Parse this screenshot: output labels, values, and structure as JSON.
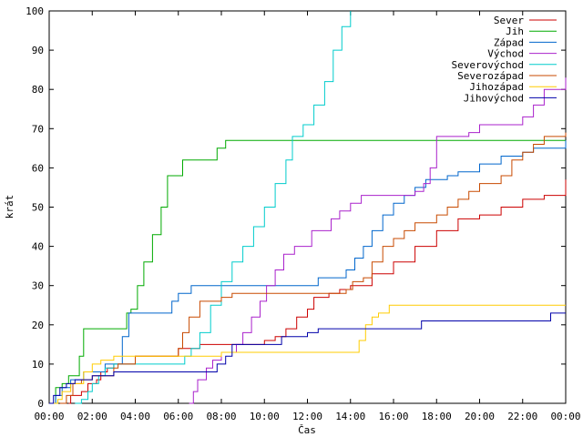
{
  "chart_data": {
    "type": "line",
    "title": "",
    "xlabel": "Čas",
    "ylabel": "krát",
    "xlim": [
      0,
      24
    ],
    "ylim": [
      0,
      100
    ],
    "x_ticks": [
      "00:00",
      "02:00",
      "04:00",
      "06:00",
      "08:00",
      "10:00",
      "12:00",
      "14:00",
      "16:00",
      "18:00",
      "20:00",
      "22:00",
      "00:00"
    ],
    "y_ticks": [
      0,
      10,
      20,
      30,
      40,
      50,
      60,
      70,
      80,
      90,
      100
    ],
    "legend_position": "top-right",
    "grid": false,
    "series": [
      {
        "name": "Sever",
        "color": "#cc0000",
        "points": [
          [
            0.9,
            0
          ],
          [
            1.0,
            2
          ],
          [
            1.5,
            3
          ],
          [
            1.8,
            5
          ],
          [
            2.2,
            6
          ],
          [
            2.4,
            8
          ],
          [
            2.7,
            9
          ],
          [
            3.0,
            10
          ],
          [
            4.0,
            12
          ],
          [
            6.0,
            14
          ],
          [
            7.0,
            15
          ],
          [
            10.0,
            16
          ],
          [
            10.5,
            17
          ],
          [
            11.0,
            19
          ],
          [
            11.5,
            22
          ],
          [
            12.0,
            24
          ],
          [
            12.3,
            27
          ],
          [
            13.0,
            28
          ],
          [
            13.5,
            29
          ],
          [
            14.0,
            30
          ],
          [
            15.0,
            33
          ],
          [
            16.0,
            36
          ],
          [
            17.0,
            40
          ],
          [
            18.0,
            44
          ],
          [
            19.0,
            47
          ],
          [
            20.0,
            48
          ],
          [
            21.0,
            50
          ],
          [
            22.0,
            52
          ],
          [
            23.0,
            53
          ],
          [
            24.0,
            57
          ]
        ]
      },
      {
        "name": "Jih",
        "color": "#00aa00",
        "points": [
          [
            0,
            0
          ],
          [
            0.3,
            4
          ],
          [
            0.6,
            5
          ],
          [
            0.9,
            7
          ],
          [
            1.4,
            12
          ],
          [
            1.6,
            19
          ],
          [
            3.5,
            19
          ],
          [
            3.6,
            23
          ],
          [
            3.8,
            24
          ],
          [
            4.1,
            30
          ],
          [
            4.4,
            36
          ],
          [
            4.8,
            43
          ],
          [
            5.2,
            50
          ],
          [
            5.5,
            58
          ],
          [
            6.2,
            62
          ],
          [
            7.6,
            62
          ],
          [
            7.8,
            65
          ],
          [
            8.2,
            67
          ],
          [
            24.0,
            67
          ]
        ]
      },
      {
        "name": "Západ",
        "color": "#0066cc",
        "points": [
          [
            0,
            0
          ],
          [
            0.3,
            2
          ],
          [
            0.6,
            4
          ],
          [
            1.0,
            6
          ],
          [
            1.6,
            8
          ],
          [
            2.6,
            10
          ],
          [
            3.4,
            17
          ],
          [
            3.7,
            23
          ],
          [
            5.7,
            26
          ],
          [
            6.0,
            28
          ],
          [
            6.6,
            30
          ],
          [
            11.5,
            30
          ],
          [
            12.5,
            32
          ],
          [
            13.8,
            34
          ],
          [
            14.2,
            37
          ],
          [
            14.6,
            40
          ],
          [
            15.0,
            44
          ],
          [
            15.5,
            48
          ],
          [
            16.0,
            51
          ],
          [
            16.5,
            53
          ],
          [
            17.0,
            55
          ],
          [
            17.5,
            57
          ],
          [
            18.5,
            58
          ],
          [
            19.0,
            59
          ],
          [
            20.0,
            61
          ],
          [
            21.0,
            63
          ],
          [
            22.0,
            64
          ],
          [
            22.5,
            65
          ],
          [
            24.0,
            67
          ]
        ]
      },
      {
        "name": "Východ",
        "color": "#aa22cc",
        "points": [
          [
            6.5,
            0
          ],
          [
            6.7,
            3
          ],
          [
            6.9,
            6
          ],
          [
            7.3,
            9
          ],
          [
            7.6,
            11
          ],
          [
            8.0,
            13
          ],
          [
            8.7,
            15
          ],
          [
            9.0,
            18
          ],
          [
            9.4,
            22
          ],
          [
            9.8,
            26
          ],
          [
            10.1,
            30
          ],
          [
            10.5,
            34
          ],
          [
            10.9,
            38
          ],
          [
            11.4,
            40
          ],
          [
            12.2,
            44
          ],
          [
            13.1,
            47
          ],
          [
            13.5,
            49
          ],
          [
            14.0,
            51
          ],
          [
            14.5,
            53
          ],
          [
            16.5,
            53
          ],
          [
            17.0,
            54
          ],
          [
            17.4,
            56
          ],
          [
            17.7,
            60
          ],
          [
            18.0,
            68
          ],
          [
            19.5,
            69
          ],
          [
            20.0,
            71
          ],
          [
            22.0,
            73
          ],
          [
            22.5,
            76
          ],
          [
            23.0,
            80
          ],
          [
            24.0,
            83
          ]
        ]
      },
      {
        "name": "Severovýchod",
        "color": "#00cccc",
        "points": [
          [
            1.2,
            0
          ],
          [
            1.5,
            1
          ],
          [
            1.8,
            3
          ],
          [
            2.0,
            5
          ],
          [
            2.3,
            7
          ],
          [
            2.6,
            9
          ],
          [
            3.0,
            10
          ],
          [
            6.0,
            10
          ],
          [
            6.3,
            12
          ],
          [
            6.6,
            14
          ],
          [
            7.0,
            18
          ],
          [
            7.5,
            25
          ],
          [
            8.0,
            31
          ],
          [
            8.5,
            36
          ],
          [
            9.0,
            40
          ],
          [
            9.5,
            45
          ],
          [
            10.0,
            50
          ],
          [
            10.5,
            56
          ],
          [
            11.0,
            62
          ],
          [
            11.3,
            68
          ],
          [
            11.8,
            71
          ],
          [
            12.3,
            76
          ],
          [
            12.8,
            82
          ],
          [
            13.2,
            90
          ],
          [
            13.6,
            96
          ],
          [
            14.0,
            100
          ]
        ]
      },
      {
        "name": "Severozápad",
        "color": "#c84a00",
        "points": [
          [
            0.5,
            0
          ],
          [
            0.8,
            2
          ],
          [
            1.1,
            5
          ],
          [
            1.5,
            6
          ],
          [
            2.0,
            7
          ],
          [
            3.0,
            9
          ],
          [
            3.2,
            10
          ],
          [
            4.0,
            12
          ],
          [
            6.0,
            14
          ],
          [
            6.2,
            18
          ],
          [
            6.5,
            22
          ],
          [
            7.0,
            26
          ],
          [
            8.0,
            27
          ],
          [
            8.5,
            28
          ],
          [
            13.0,
            28
          ],
          [
            13.8,
            29
          ],
          [
            14.1,
            31
          ],
          [
            14.6,
            32
          ],
          [
            15.0,
            36
          ],
          [
            15.5,
            40
          ],
          [
            16.0,
            42
          ],
          [
            16.5,
            44
          ],
          [
            17.0,
            46
          ],
          [
            18.0,
            48
          ],
          [
            18.5,
            50
          ],
          [
            19.0,
            52
          ],
          [
            19.5,
            54
          ],
          [
            20.0,
            56
          ],
          [
            21.0,
            58
          ],
          [
            21.5,
            62
          ],
          [
            22.0,
            64
          ],
          [
            22.5,
            66
          ],
          [
            23.0,
            68
          ],
          [
            24.0,
            69
          ]
        ]
      },
      {
        "name": "Jihozápad",
        "color": "#ffcc00",
        "points": [
          [
            0.2,
            0
          ],
          [
            0.4,
            1
          ],
          [
            0.6,
            3
          ],
          [
            1.0,
            5
          ],
          [
            1.6,
            8
          ],
          [
            2.0,
            10
          ],
          [
            2.4,
            11
          ],
          [
            3.0,
            12
          ],
          [
            8.0,
            13
          ],
          [
            14.2,
            13
          ],
          [
            14.4,
            16
          ],
          [
            14.7,
            20
          ],
          [
            15.0,
            22
          ],
          [
            15.3,
            23
          ],
          [
            15.8,
            25
          ],
          [
            24.0,
            25
          ]
        ]
      },
      {
        "name": "Jihovýchod",
        "color": "#0000aa",
        "points": [
          [
            0,
            0
          ],
          [
            0.2,
            2
          ],
          [
            0.5,
            4
          ],
          [
            0.8,
            5
          ],
          [
            1.2,
            6
          ],
          [
            2.0,
            7
          ],
          [
            3.0,
            8
          ],
          [
            7.5,
            8
          ],
          [
            7.8,
            10
          ],
          [
            8.2,
            12
          ],
          [
            8.5,
            15
          ],
          [
            10.5,
            15
          ],
          [
            10.8,
            17
          ],
          [
            12.0,
            18
          ],
          [
            12.5,
            19
          ],
          [
            17.0,
            19
          ],
          [
            17.3,
            21
          ],
          [
            23.0,
            21
          ],
          [
            23.3,
            23
          ],
          [
            24.0,
            23
          ]
        ]
      }
    ]
  }
}
